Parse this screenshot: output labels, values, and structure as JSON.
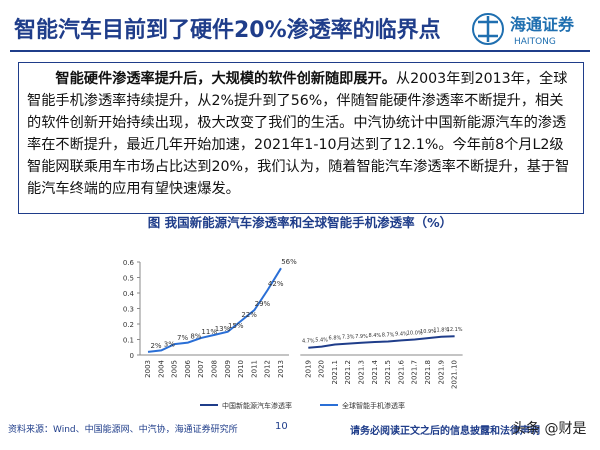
{
  "header": {
    "title": "智能汽车目前到了硬件20%渗透率的临界点",
    "logo_cn": "海通证券",
    "logo_en": "HAITONG"
  },
  "body": {
    "lead": "智能硬件渗透率提升后，大规模的软件创新随即展开。",
    "text": "从2003年到2013年，全球智能手机渗透率持续提升，从2%提升到了56%，伴随智能硬件渗透率不断提升，相关的软件创新开始持续出现，极大改变了我们的生活。中汽协统计中国新能源汽车的渗透率在不断提升，最近几年开始加速，2021年1-10月达到了12.1%。今年前8个月L2级智能网联乘用车市场占比达到20%，我们认为，随着智能汽车渗透率不断提升，基于智能汽车终端的应用有望快速爆发。"
  },
  "chart_data": {
    "type": "line",
    "title": "图 我国新能源汽车渗透率和全球智能手机渗透率（%）",
    "categories": [
      "2003",
      "2004",
      "2005",
      "2006",
      "2007",
      "2008",
      "2009",
      "2010",
      "2011",
      "2012",
      "2013",
      "2019",
      "2020",
      "2021.1",
      "2021.2",
      "2021.3",
      "2021.4",
      "2021.5",
      "2021.6",
      "2021.7",
      "2021.8",
      "2021.9",
      "2021.10"
    ],
    "series": [
      {
        "name": "中国新能源汽车渗透率",
        "color": "#1f3d8a",
        "values": [
          null,
          null,
          null,
          null,
          null,
          null,
          null,
          null,
          null,
          null,
          null,
          0.047,
          0.054,
          0.068,
          0.073,
          0.079,
          0.084,
          0.087,
          0.094,
          0.1,
          0.109,
          0.118,
          0.121
        ],
        "value_labels": [
          null,
          null,
          null,
          null,
          null,
          null,
          null,
          null,
          null,
          null,
          null,
          "4.7%",
          "5.4%",
          "6.8%",
          "7.3%",
          "7.9%",
          "8.4%",
          "8.7%",
          "9.4%",
          "10.0%",
          "10.9%",
          "11.8%",
          "12.1%"
        ]
      },
      {
        "name": "全球智能手机渗透率",
        "color": "#2a6fd6",
        "values": [
          0.02,
          0.03,
          0.07,
          0.08,
          0.11,
          0.13,
          0.15,
          0.22,
          0.29,
          0.42,
          0.56,
          null,
          null,
          null,
          null,
          null,
          null,
          null,
          null,
          null,
          null,
          null,
          null
        ],
        "value_labels": [
          "2%",
          "3%",
          "7%",
          "8%",
          "11%",
          "13%",
          "15%",
          "22%",
          "29%",
          "42%",
          "56%",
          null,
          null,
          null,
          null,
          null,
          null,
          null,
          null,
          null,
          null,
          null,
          null
        ]
      }
    ],
    "ylim": [
      0,
      0.6
    ],
    "yticks": [
      0,
      0.1,
      0.2,
      0.3,
      0.4,
      0.5,
      0.6
    ]
  },
  "footer": {
    "source": "资料来源：Wind、中国能源网、中汽协，海通证券研究所",
    "page": "10",
    "disclaimer": "请务必阅读正文之后的信息披露和法律声明",
    "watermark": "头条 @财是"
  }
}
